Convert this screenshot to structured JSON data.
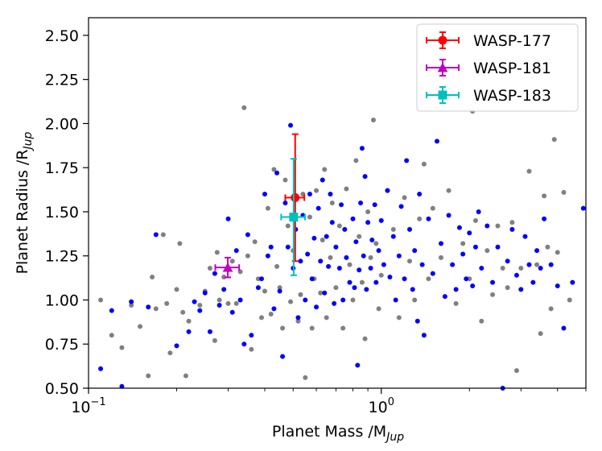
{
  "chart_data": {
    "type": "scatter",
    "title": "",
    "xlabel": {
      "main": "Planet Mass /M",
      "sub": "Jup"
    },
    "ylabel": {
      "main": "Planet Radius /R",
      "sub": "Jup"
    },
    "x_scale": "log",
    "xlim": [
      0.1,
      5.0
    ],
    "ylim": [
      0.5,
      2.6
    ],
    "x_ticks": [
      {
        "value": 0.1,
        "base": "10",
        "exp": "−1"
      },
      {
        "value": 1.0,
        "base": "10",
        "exp": "0"
      }
    ],
    "y_ticks": [
      {
        "value": 0.5,
        "label": "0.50"
      },
      {
        "value": 0.75,
        "label": "0.75"
      },
      {
        "value": 1.0,
        "label": "1.00"
      },
      {
        "value": 1.25,
        "label": "1.25"
      },
      {
        "value": 1.5,
        "label": "1.50"
      },
      {
        "value": 1.75,
        "label": "1.75"
      },
      {
        "value": 2.0,
        "label": "2.00"
      },
      {
        "value": 2.25,
        "label": "2.25"
      },
      {
        "value": 2.5,
        "label": "2.50"
      }
    ],
    "grid": false,
    "legend_position": "top-right",
    "background_series": [
      {
        "color": "#808080",
        "points": [
          [
            0.11,
            1.0
          ],
          [
            0.12,
            0.8
          ],
          [
            0.13,
            0.73
          ],
          [
            0.14,
            0.97
          ],
          [
            0.15,
            0.85
          ],
          [
            0.16,
            0.57
          ],
          [
            0.165,
            1.13
          ],
          [
            0.17,
            0.95
          ],
          [
            0.18,
            1.37
          ],
          [
            0.185,
            0.98
          ],
          [
            0.19,
            0.7
          ],
          [
            0.2,
            1.06
          ],
          [
            0.205,
            1.32
          ],
          [
            0.21,
            0.93
          ],
          [
            0.215,
            0.57
          ],
          [
            0.22,
            0.88
          ],
          [
            0.24,
            0.97
          ],
          [
            0.25,
            1.05
          ],
          [
            0.26,
            1.18
          ],
          [
            0.27,
            0.77
          ],
          [
            0.275,
            1.27
          ],
          [
            0.28,
            1.0
          ],
          [
            0.29,
            1.13
          ],
          [
            0.3,
            0.98
          ],
          [
            0.31,
            1.22
          ],
          [
            0.32,
            0.98
          ],
          [
            0.33,
            1.16
          ],
          [
            0.34,
            2.09
          ],
          [
            0.35,
            1.25
          ],
          [
            0.36,
            0.72
          ],
          [
            0.37,
            1.33
          ],
          [
            0.38,
            1.12
          ],
          [
            0.39,
            0.9
          ],
          [
            0.4,
            1.05
          ],
          [
            0.41,
            1.52
          ],
          [
            0.42,
            0.92
          ],
          [
            0.43,
            1.74
          ],
          [
            0.44,
            1.19
          ],
          [
            0.45,
            1.07
          ],
          [
            0.46,
            0.84
          ],
          [
            0.47,
            1.68
          ],
          [
            0.48,
            1.42
          ],
          [
            0.49,
            0.99
          ],
          [
            0.5,
            1.28
          ],
          [
            0.52,
            0.88
          ],
          [
            0.53,
            1.03
          ],
          [
            0.54,
            1.6
          ],
          [
            0.55,
            0.56
          ],
          [
            0.57,
            1.47
          ],
          [
            0.58,
            0.84
          ],
          [
            0.59,
            1.12
          ],
          [
            0.6,
            1.62
          ],
          [
            0.62,
            1.04
          ],
          [
            0.63,
            1.34
          ],
          [
            0.64,
            1.74
          ],
          [
            0.65,
            0.9
          ],
          [
            0.67,
            1.24
          ],
          [
            0.68,
            1.55
          ],
          [
            0.7,
            1.07
          ],
          [
            0.72,
            1.42
          ],
          [
            0.74,
            0.84
          ],
          [
            0.76,
            1.63
          ],
          [
            0.78,
            1.2
          ],
          [
            0.8,
            1.0
          ],
          [
            0.82,
            1.79
          ],
          [
            0.84,
            1.36
          ],
          [
            0.86,
            1.1
          ],
          [
            0.88,
            0.78
          ],
          [
            0.9,
            1.5
          ],
          [
            0.92,
            1.24
          ],
          [
            0.94,
            2.02
          ],
          [
            0.96,
            1.32
          ],
          [
            0.98,
            0.95
          ],
          [
            1.0,
            1.14
          ],
          [
            1.05,
            1.62
          ],
          [
            1.1,
            1.4
          ],
          [
            1.15,
            0.9
          ],
          [
            1.2,
            1.58
          ],
          [
            1.25,
            1.22
          ],
          [
            1.3,
            1.0
          ],
          [
            1.35,
            1.46
          ],
          [
            1.4,
            1.77
          ],
          [
            1.45,
            1.12
          ],
          [
            1.5,
            1.52
          ],
          [
            1.6,
            1.24
          ],
          [
            1.7,
            1.62
          ],
          [
            1.8,
            0.98
          ],
          [
            1.9,
            1.32
          ],
          [
            2.0,
            1.12
          ],
          [
            2.1,
            1.45
          ],
          [
            2.2,
            0.88
          ],
          [
            2.3,
            1.28
          ],
          [
            2.4,
            1.03
          ],
          [
            2.5,
            1.42
          ],
          [
            2.6,
            1.18
          ],
          [
            2.7,
            1.07
          ],
          [
            2.8,
            1.44
          ],
          [
            2.9,
            0.6
          ],
          [
            3.0,
            1.18
          ],
          [
            3.2,
            1.73
          ],
          [
            3.4,
            1.2
          ],
          [
            3.5,
            0.81
          ],
          [
            3.6,
            1.59
          ],
          [
            3.7,
            1.3
          ],
          [
            3.8,
            0.95
          ],
          [
            3.9,
            1.91
          ],
          [
            4.0,
            1.27
          ],
          [
            4.2,
            1.61
          ],
          [
            4.4,
            1.0
          ],
          [
            2.05,
            2.07
          ]
        ]
      },
      {
        "color": "#0000ff",
        "points": [
          [
            0.11,
            0.61
          ],
          [
            0.12,
            0.94
          ],
          [
            0.13,
            0.51
          ],
          [
            0.14,
            0.99
          ],
          [
            0.16,
            0.96
          ],
          [
            0.17,
            1.37
          ],
          [
            0.2,
            0.74
          ],
          [
            0.22,
            0.82
          ],
          [
            0.23,
            0.99
          ],
          [
            0.24,
            0.94
          ],
          [
            0.25,
            1.04
          ],
          [
            0.26,
            0.82
          ],
          [
            0.27,
            1.15
          ],
          [
            0.28,
            0.97
          ],
          [
            0.29,
            1.06
          ],
          [
            0.3,
            1.46
          ],
          [
            0.31,
            0.93
          ],
          [
            0.32,
            1.28
          ],
          [
            0.33,
            1.0
          ],
          [
            0.34,
            0.75
          ],
          [
            0.35,
            1.37
          ],
          [
            0.36,
            0.8
          ],
          [
            0.38,
            1.07
          ],
          [
            0.39,
            1.12
          ],
          [
            0.4,
            1.6
          ],
          [
            0.41,
            1.25
          ],
          [
            0.42,
            1.3
          ],
          [
            0.43,
            0.95
          ],
          [
            0.44,
            1.72
          ],
          [
            0.45,
            1.05
          ],
          [
            0.46,
            0.68
          ],
          [
            0.47,
            1.55
          ],
          [
            0.48,
            1.3
          ],
          [
            0.49,
            1.99
          ],
          [
            0.5,
            1.18
          ],
          [
            0.51,
            1.4
          ],
          [
            0.52,
            0.9
          ],
          [
            0.53,
            1.22
          ],
          [
            0.54,
            1.48
          ],
          [
            0.55,
            1.0
          ],
          [
            0.56,
            1.26
          ],
          [
            0.57,
            1.6
          ],
          [
            0.58,
            1.12
          ],
          [
            0.59,
            1.35
          ],
          [
            0.6,
            0.96
          ],
          [
            0.61,
            1.52
          ],
          [
            0.62,
            1.22
          ],
          [
            0.63,
            1.68
          ],
          [
            0.64,
            1.04
          ],
          [
            0.65,
            1.36
          ],
          [
            0.66,
            1.19
          ],
          [
            0.67,
            1.6
          ],
          [
            0.68,
            1.44
          ],
          [
            0.69,
            0.98
          ],
          [
            0.7,
            1.3
          ],
          [
            0.72,
            1.18
          ],
          [
            0.73,
            1.54
          ],
          [
            0.74,
            1.0
          ],
          [
            0.75,
            1.4
          ],
          [
            0.76,
            1.24
          ],
          [
            0.78,
            1.1
          ],
          [
            0.8,
            1.46
          ],
          [
            0.81,
            1.07
          ],
          [
            0.82,
            1.33
          ],
          [
            0.83,
            0.63
          ],
          [
            0.84,
            1.17
          ],
          [
            0.85,
            1.55
          ],
          [
            0.86,
            1.86
          ],
          [
            0.87,
            1.25
          ],
          [
            0.88,
            1.7
          ],
          [
            0.89,
            1.06
          ],
          [
            0.9,
            1.44
          ],
          [
            0.92,
            1.18
          ],
          [
            0.93,
            1.34
          ],
          [
            0.95,
            1.54
          ],
          [
            0.96,
            1.1
          ],
          [
            0.98,
            1.28
          ],
          [
            1.0,
            1.45
          ],
          [
            1.02,
            1.2
          ],
          [
            1.05,
            1.62
          ],
          [
            1.07,
            1.13
          ],
          [
            1.1,
            1.36
          ],
          [
            1.12,
            1.0
          ],
          [
            1.15,
            1.25
          ],
          [
            1.17,
            1.53
          ],
          [
            1.2,
            1.12
          ],
          [
            1.22,
            1.79
          ],
          [
            1.25,
            1.4
          ],
          [
            1.28,
            1.06
          ],
          [
            1.3,
            1.28
          ],
          [
            1.33,
            0.88
          ],
          [
            1.35,
            1.6
          ],
          [
            1.38,
            1.2
          ],
          [
            1.4,
            0.8
          ],
          [
            1.45,
            1.46
          ],
          [
            1.5,
            1.15
          ],
          [
            1.55,
            1.9
          ],
          [
            1.6,
            1.32
          ],
          [
            1.65,
            1.02
          ],
          [
            1.7,
            1.48
          ],
          [
            1.75,
            1.2
          ],
          [
            1.8,
            1.06
          ],
          [
            1.85,
            1.41
          ],
          [
            1.9,
            1.26
          ],
          [
            1.95,
            1.12
          ],
          [
            2.0,
            1.38
          ],
          [
            2.05,
            1.08
          ],
          [
            2.1,
            1.3
          ],
          [
            2.15,
            1.5
          ],
          [
            2.2,
            1.18
          ],
          [
            2.3,
            1.42
          ],
          [
            2.4,
            1.1
          ],
          [
            2.5,
            1.3
          ],
          [
            2.6,
            0.5
          ],
          [
            2.7,
            1.22
          ],
          [
            2.8,
            1.4
          ],
          [
            2.9,
            1.14
          ],
          [
            3.0,
            1.06
          ],
          [
            3.1,
            1.36
          ],
          [
            3.2,
            1.2
          ],
          [
            3.3,
            1.1
          ],
          [
            3.4,
            1.28
          ],
          [
            3.5,
            1.18
          ],
          [
            3.6,
            1.46
          ],
          [
            3.8,
            1.2
          ],
          [
            4.0,
            1.08
          ],
          [
            4.2,
            0.84
          ],
          [
            4.5,
            1.1
          ],
          [
            4.9,
            1.52
          ]
        ]
      }
    ],
    "highlighted": [
      {
        "name": "WASP-177",
        "color": "#ff0000",
        "marker": "circle",
        "mass": 0.508,
        "mass_err": [
          0.038,
          0.038
        ],
        "radius": 1.58,
        "radius_err": [
          0.36,
          0.36
        ]
      },
      {
        "name": "WASP-181",
        "color": "#bf00bf",
        "marker": "triangle",
        "mass": 0.299,
        "mass_err": [
          0.028,
          0.028
        ],
        "radius": 1.184,
        "radius_err": [
          0.056,
          0.056
        ]
      },
      {
        "name": "WASP-183",
        "color": "#00bfbf",
        "marker": "square",
        "mass": 0.502,
        "mass_err": [
          0.047,
          0.047
        ],
        "radius": 1.47,
        "radius_err": [
          0.33,
          0.33
        ]
      }
    ]
  }
}
